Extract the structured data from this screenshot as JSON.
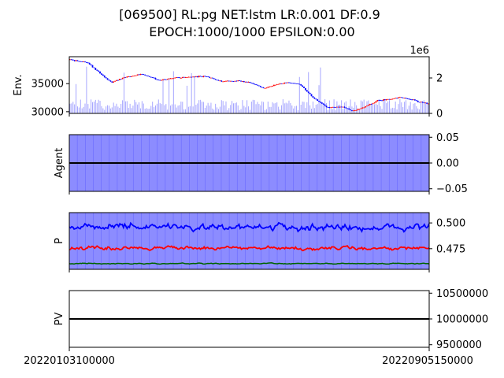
{
  "figure": {
    "title_line1": "[069500] RL:pg NET:lstm LR:0.001 DF:0.9",
    "title_line2": "EPOCH:1000/1000 EPSILON:0.00"
  },
  "colors": {
    "candle_up": "#ff0000",
    "candle_down": "#0000ff",
    "volume": "#0000ff",
    "agent_fill": "#7f7fff",
    "p_fill": "#7f7fff",
    "p_line1": "#0000ff",
    "p_line2": "#ff0000",
    "p_line3": "#006400",
    "black": "#000000"
  },
  "chart_data": [
    {
      "type": "candlestick",
      "name": "env-panel",
      "ylabel": "Env.",
      "ylim": [
        29700,
        39800
      ],
      "yticks": [
        "30000",
        "35000"
      ],
      "ytick_values": [
        30000,
        35000
      ],
      "secondary_ylim": [
        0,
        3200000
      ],
      "secondary_yticks": [
        "0",
        "2"
      ],
      "secondary_ytick_values": [
        0,
        2000000
      ],
      "secondary_offset_label": "1e6",
      "price_path_keypoints": [
        [
          0,
          39300
        ],
        [
          0.05,
          38700
        ],
        [
          0.09,
          36500
        ],
        [
          0.115,
          35200
        ],
        [
          0.15,
          36100
        ],
        [
          0.2,
          36700
        ],
        [
          0.25,
          35600
        ],
        [
          0.3,
          36100
        ],
        [
          0.38,
          36300
        ],
        [
          0.42,
          35400
        ],
        [
          0.46,
          35500
        ],
        [
          0.5,
          35300
        ],
        [
          0.54,
          34200
        ],
        [
          0.6,
          35200
        ],
        [
          0.64,
          35000
        ],
        [
          0.68,
          32400
        ],
        [
          0.72,
          30700
        ],
        [
          0.76,
          30900
        ],
        [
          0.79,
          30100
        ],
        [
          0.82,
          30800
        ],
        [
          0.86,
          32000
        ],
        [
          0.9,
          32300
        ],
        [
          0.92,
          32600
        ],
        [
          0.95,
          32200
        ],
        [
          1.0,
          31400
        ]
      ],
      "volume_typical": 700000,
      "volume_spike": 2700000
    },
    {
      "type": "area",
      "name": "agent-panel",
      "ylabel": "Agent",
      "ylim": [
        -0.055,
        0.055
      ],
      "yticks": [
        "0.05",
        "0.00",
        "−0.05"
      ],
      "ytick_values": [
        0.05,
        0.0,
        -0.05
      ],
      "line_value": 0.0
    },
    {
      "type": "line",
      "name": "p-panel",
      "ylabel": "P",
      "ylim": [
        0.455,
        0.51
      ],
      "yticks": [
        "0.500",
        "0.475"
      ],
      "ytick_values": [
        0.5,
        0.475
      ],
      "series": [
        {
          "key": "p1",
          "mean": 0.496,
          "noise": 0.0025
        },
        {
          "key": "p2",
          "mean": 0.4755,
          "noise": 0.0012
        },
        {
          "key": "p3",
          "mean": 0.4605,
          "noise": 0.0003
        }
      ]
    },
    {
      "type": "line",
      "name": "pv-panel",
      "ylabel": "PV",
      "ylim": [
        9450000,
        10550000
      ],
      "yticks": [
        "10500000",
        "10000000",
        "9500000"
      ],
      "ytick_values": [
        10500000,
        10000000,
        9500000
      ],
      "line_value": 10000000,
      "xticks": [
        "20220103100000",
        "20220905150000"
      ]
    }
  ]
}
